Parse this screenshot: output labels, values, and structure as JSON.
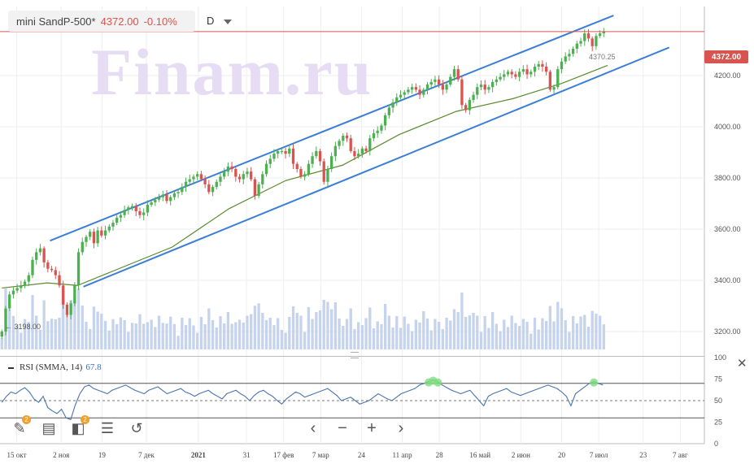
{
  "header": {
    "symbol": "mini SandP-500*",
    "price": "4372.00",
    "change": "-0.10%",
    "period": "D"
  },
  "watermark": "Finam.ru",
  "price_tag": "4372.00",
  "last_label": "4370.25",
  "low_label": "3198.00",
  "rsi": {
    "title": "RSI (SMMA, 14)",
    "value": "67.8",
    "close": "✕"
  },
  "toolbar": [
    {
      "name": "draw-tool-button",
      "icon": "pencil-icon",
      "glyph": "✎",
      "badge": "2"
    },
    {
      "name": "notes-button",
      "icon": "document-icon",
      "glyph": "▤",
      "badge": ""
    },
    {
      "name": "indicators-button",
      "icon": "indicator-icon",
      "glyph": "◧",
      "badge": "2"
    },
    {
      "name": "settings-button",
      "icon": "sliders-icon",
      "glyph": "☰",
      "badge": ""
    },
    {
      "name": "reset-button",
      "icon": "undo-icon",
      "glyph": "↺",
      "badge": ""
    }
  ],
  "nav": [
    {
      "name": "scroll-left-button",
      "icon": "chevron-left-icon",
      "glyph": "‹"
    },
    {
      "name": "zoom-out-button",
      "icon": "minus-icon",
      "glyph": "−"
    },
    {
      "name": "zoom-in-button",
      "icon": "plus-icon",
      "glyph": "+"
    },
    {
      "name": "scroll-right-button",
      "icon": "chevron-right-icon",
      "glyph": "›"
    }
  ],
  "colors": {
    "up": "#4caf50",
    "down": "#d9534f",
    "channel": "#3a7fd5",
    "ma": "#5a8a2e",
    "rsi": "#4a73b0",
    "volume": "#c5d3ec",
    "price_line": "#d9534f"
  },
  "chart_data": {
    "type": "line",
    "x_ticks": [
      {
        "label": "15 окт",
        "i": 4
      },
      {
        "label": "2 ноя",
        "i": 16
      },
      {
        "label": "19",
        "i": 27
      },
      {
        "label": "7 дек",
        "i": 39
      },
      {
        "label": "2021",
        "i": 53,
        "bold": true
      },
      {
        "label": "31",
        "i": 66
      },
      {
        "label": "17 фев",
        "i": 76
      },
      {
        "label": "7 мар",
        "i": 86
      },
      {
        "label": "24",
        "i": 97
      },
      {
        "label": "11 апр",
        "i": 108
      },
      {
        "label": "28",
        "i": 118
      },
      {
        "label": "16 май",
        "i": 129
      },
      {
        "label": "2 июн",
        "i": 140
      },
      {
        "label": "20",
        "i": 151
      },
      {
        "label": "7 июл",
        "i": 161
      },
      {
        "label": "23",
        "i": 173
      },
      {
        "label": "7 авг",
        "i": 183
      }
    ],
    "y_ticks": [
      "4200.00",
      "4000.00",
      "3800.00",
      "3600.00",
      "3400.00",
      "3200.00"
    ],
    "y_tick_values": [
      4200,
      4000,
      3800,
      3600,
      3400,
      3200
    ],
    "ylim": [
      3130,
      4470
    ],
    "rsi_ticks": [
      "100",
      "75",
      "50",
      "25",
      "0"
    ],
    "rsi_tick_values": [
      100,
      75,
      50,
      25,
      0
    ],
    "rsi_levels": [
      70,
      50,
      30
    ],
    "last_price": 4372.0,
    "n_bars": 190,
    "candles_close": [
      3200,
      3290,
      3345,
      3360,
      3370,
      3380,
      3395,
      3420,
      3480,
      3510,
      3525,
      3470,
      3445,
      3440,
      3420,
      3380,
      3305,
      3265,
      3310,
      3380,
      3510,
      3550,
      3570,
      3590,
      3545,
      3595,
      3575,
      3595,
      3610,
      3625,
      3645,
      3655,
      3675,
      3685,
      3690,
      3670,
      3655,
      3665,
      3695,
      3705,
      3715,
      3725,
      3735,
      3710,
      3725,
      3740,
      3745,
      3765,
      3785,
      3795,
      3805,
      3815,
      3795,
      3775,
      3745,
      3765,
      3785,
      3805,
      3825,
      3845,
      3835,
      3805,
      3795,
      3815,
      3825,
      3795,
      3730,
      3775,
      3815,
      3855,
      3875,
      3895,
      3905,
      3905,
      3895,
      3915,
      3855,
      3835,
      3805,
      3815,
      3855,
      3885,
      3905,
      3865,
      3785,
      3835,
      3885,
      3925,
      3945,
      3965,
      3955,
      3905,
      3885,
      3895,
      3915,
      3905,
      3955,
      3975,
      3985,
      4005,
      4045,
      4075,
      4095,
      4115,
      4125,
      4135,
      4145,
      4155,
      4145,
      4125,
      4145,
      4165,
      4175,
      4185,
      4165,
      4145,
      4165,
      4195,
      4225,
      4185,
      4085,
      4065,
      4105,
      4125,
      4155,
      4165,
      4145,
      4155,
      4175,
      4185,
      4195,
      4205,
      4215,
      4205,
      4195,
      4215,
      4225,
      4205,
      4215,
      4235,
      4245,
      4235,
      4215,
      4145,
      4155,
      4225,
      4255,
      4275,
      4285,
      4305,
      4325,
      4335,
      4365,
      4345,
      4315,
      4355,
      4365,
      4372
    ],
    "ma": [
      [
        0,
        3370
      ],
      [
        12,
        3390
      ],
      [
        20,
        3380
      ],
      [
        30,
        3440
      ],
      [
        45,
        3530
      ],
      [
        60,
        3680
      ],
      [
        75,
        3790
      ],
      [
        90,
        3850
      ],
      [
        105,
        3970
      ],
      [
        120,
        4060
      ],
      [
        135,
        4110
      ],
      [
        148,
        4170
      ],
      [
        160,
        4240
      ]
    ],
    "channel_upper": [
      [
        13,
        3555
      ],
      [
        165,
        4435
      ]
    ],
    "channel_lower": [
      [
        22,
        3375
      ],
      [
        180,
        4310
      ]
    ],
    "rsi_values": [
      48,
      55,
      60,
      58,
      62,
      65,
      60,
      52,
      48,
      55,
      42,
      38,
      35,
      40,
      30,
      28,
      45,
      58,
      66,
      68,
      64,
      62,
      60,
      58,
      62,
      64,
      66,
      68,
      65,
      62,
      60,
      58,
      62,
      64,
      66,
      62,
      58,
      60,
      62,
      64,
      60,
      58,
      55,
      58,
      60,
      62,
      58,
      55,
      52,
      58,
      60,
      62,
      58,
      55,
      50,
      56,
      60,
      62,
      58,
      55,
      50,
      46,
      52,
      56,
      60,
      58,
      54,
      56,
      58,
      60,
      62,
      64,
      60,
      56,
      50,
      52,
      54,
      50,
      46,
      48,
      50,
      54,
      58,
      55,
      52,
      50,
      54,
      58,
      60,
      62,
      64,
      68,
      70,
      72,
      74,
      72,
      68,
      65,
      62,
      60,
      58,
      60,
      62,
      56,
      50,
      44,
      55,
      58,
      60,
      62,
      64,
      60,
      58,
      56,
      58,
      60,
      62,
      64,
      66,
      68,
      66,
      64,
      60,
      55,
      44,
      58,
      62,
      66,
      70,
      72,
      70,
      68
    ]
  }
}
